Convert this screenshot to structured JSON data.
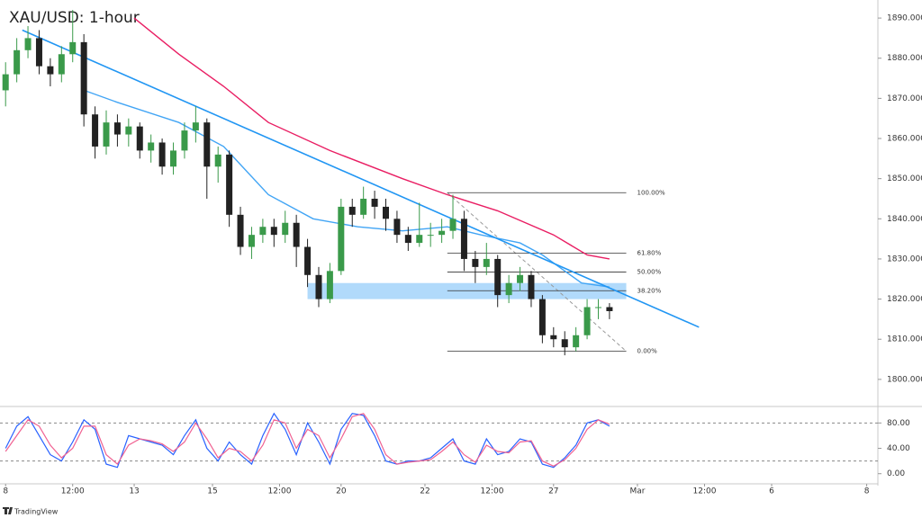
{
  "chart_data": [
    {
      "type": "candlestick",
      "title": "XAU/USD: 1-hour",
      "up_color": "#3a9a4a",
      "down_color": "#222222",
      "x": [
        0,
        2,
        4,
        6,
        8,
        10,
        12,
        14,
        16,
        18,
        20,
        22,
        24,
        26,
        28,
        30,
        32,
        34,
        36,
        38,
        40,
        42,
        44,
        46,
        48,
        50,
        52,
        54,
        56,
        58,
        60,
        62,
        64,
        66,
        68,
        70,
        72,
        74,
        76,
        78,
        80,
        82,
        84,
        86,
        88,
        90,
        92,
        94,
        96,
        98,
        100,
        102,
        104,
        106,
        108
      ],
      "ohlc": [
        [
          1872,
          1879,
          1868,
          1876
        ],
        [
          1876,
          1885,
          1874,
          1882
        ],
        [
          1882,
          1888,
          1880,
          1885
        ],
        [
          1885,
          1887,
          1876,
          1878
        ],
        [
          1878,
          1880,
          1873,
          1876
        ],
        [
          1876,
          1883,
          1874,
          1881
        ],
        [
          1881,
          1892,
          1879,
          1884
        ],
        [
          1884,
          1886,
          1863,
          1866
        ],
        [
          1866,
          1868,
          1855,
          1858
        ],
        [
          1858,
          1867,
          1856,
          1864
        ],
        [
          1864,
          1866,
          1858,
          1861
        ],
        [
          1861,
          1865,
          1858,
          1863
        ],
        [
          1863,
          1864,
          1855,
          1857
        ],
        [
          1857,
          1861,
          1854,
          1859
        ],
        [
          1859,
          1860,
          1851,
          1853
        ],
        [
          1853,
          1859,
          1851,
          1857
        ],
        [
          1857,
          1864,
          1855,
          1862
        ],
        [
          1862,
          1868,
          1859,
          1864
        ],
        [
          1864,
          1865,
          1845,
          1853
        ],
        [
          1853,
          1858,
          1849,
          1856
        ],
        [
          1856,
          1857,
          1838,
          1841
        ],
        [
          1841,
          1843,
          1831,
          1833
        ],
        [
          1833,
          1838,
          1830,
          1836
        ],
        [
          1836,
          1840,
          1834,
          1838
        ],
        [
          1838,
          1840,
          1833,
          1836
        ],
        [
          1836,
          1842,
          1834,
          1839
        ],
        [
          1839,
          1841,
          1828,
          1833
        ],
        [
          1833,
          1835,
          1823,
          1826
        ],
        [
          1826,
          1828,
          1818,
          1820
        ],
        [
          1820,
          1829,
          1819,
          1827
        ],
        [
          1827,
          1845,
          1826,
          1843
        ],
        [
          1843,
          1845,
          1838,
          1841
        ],
        [
          1841,
          1848,
          1840,
          1845
        ],
        [
          1845,
          1847,
          1840,
          1843
        ],
        [
          1843,
          1845,
          1837,
          1840
        ],
        [
          1840,
          1842,
          1834,
          1836
        ],
        [
          1836,
          1838,
          1832,
          1834
        ],
        [
          1834,
          1844,
          1833,
          1836
        ],
        [
          1836,
          1839,
          1833,
          1836
        ],
        [
          1836,
          1840,
          1834,
          1837
        ],
        [
          1837,
          1846,
          1835,
          1840
        ],
        [
          1840,
          1842,
          1827,
          1830
        ],
        [
          1830,
          1832,
          1824,
          1828
        ],
        [
          1828,
          1834,
          1826,
          1830
        ],
        [
          1830,
          1831,
          1818,
          1821
        ],
        [
          1821,
          1826,
          1819,
          1824
        ],
        [
          1824,
          1828,
          1822,
          1826
        ],
        [
          1826,
          1827,
          1818,
          1820
        ],
        [
          1820,
          1821,
          1809,
          1811
        ],
        [
          1811,
          1813,
          1808,
          1810
        ],
        [
          1810,
          1812,
          1806,
          1808
        ],
        [
          1808,
          1813,
          1807,
          1811
        ],
        [
          1811,
          1820,
          1810,
          1818
        ],
        [
          1818,
          1820,
          1815,
          1818
        ],
        [
          1818,
          1819,
          1815,
          1817
        ]
      ],
      "series": [
        {
          "color": "#e91e63",
          "x": [
            23,
            31,
            39,
            47,
            58,
            71,
            79,
            88,
            98,
            104,
            108
          ],
          "values": [
            1890,
            1881,
            1873,
            1864,
            1857,
            1850,
            1846,
            1842,
            1836,
            1831,
            1830
          ]
        },
        {
          "color": "#42a5f5",
          "x": [
            14,
            20,
            31,
            39,
            47,
            55,
            63,
            71,
            79,
            85,
            92,
            96,
            103,
            108
          ],
          "values": [
            1872,
            1869,
            1864,
            1858,
            1846,
            1840,
            1838,
            1837,
            1838,
            1836,
            1834,
            1831,
            1824,
            1823
          ]
        },
        {
          "color": "#2196f3",
          "x": [
            3,
            124
          ],
          "values": [
            1887,
            1813
          ]
        }
      ],
      "zone": {
        "color": "#90caf9",
        "x": [
          54,
          111
        ],
        "y": [
          1820,
          1824
        ]
      },
      "fib": {
        "high": 1846.5,
        "low": 1807,
        "x": [
          79,
          111
        ],
        "levels": [
          100,
          61.8,
          50,
          38.2,
          0
        ],
        "value_labels": [
          "100.00%",
          "61.80%",
          "50.00%",
          "38.20%",
          "0.00%"
        ]
      },
      "xlim": [
        -1,
        156
      ],
      "ylim": [
        1793.25,
        1894.5
      ],
      "yticks": [
        {
          "value": 1800,
          "label": "1800.000"
        },
        {
          "value": 1810,
          "label": "1810.000"
        },
        {
          "value": 1820,
          "label": "1820.000"
        },
        {
          "value": 1830,
          "label": "1830.000"
        },
        {
          "value": 1840,
          "label": "1840.000"
        },
        {
          "value": 1850,
          "label": "1850.000"
        },
        {
          "value": 1860,
          "label": "1860.000"
        },
        {
          "value": 1870,
          "label": "1870.000"
        },
        {
          "value": 1880,
          "label": "1880.000"
        },
        {
          "value": 1890,
          "label": "1890.000"
        }
      ]
    },
    {
      "type": "line",
      "x": [
        0,
        2,
        4,
        6,
        8,
        10,
        12,
        14,
        16,
        18,
        20,
        22,
        24,
        26,
        28,
        30,
        32,
        34,
        36,
        38,
        40,
        42,
        44,
        46,
        48,
        50,
        52,
        54,
        56,
        58,
        60,
        62,
        64,
        66,
        68,
        70,
        72,
        74,
        76,
        78,
        80,
        82,
        84,
        86,
        88,
        90,
        92,
        94,
        96,
        98,
        100,
        102,
        104,
        106,
        108
      ],
      "series": [
        {
          "color": "#2962ff",
          "values": [
            40,
            75,
            90,
            60,
            30,
            20,
            50,
            85,
            70,
            15,
            10,
            60,
            55,
            50,
            45,
            30,
            60,
            85,
            40,
            20,
            50,
            30,
            15,
            60,
            95,
            70,
            30,
            80,
            50,
            15,
            70,
            95,
            92,
            60,
            20,
            15,
            20,
            20,
            25,
            40,
            55,
            20,
            15,
            55,
            30,
            35,
            55,
            50,
            15,
            10,
            25,
            45,
            80,
            85,
            75
          ]
        },
        {
          "color": "#f06292",
          "values": [
            35,
            60,
            85,
            75,
            45,
            25,
            40,
            75,
            75,
            30,
            15,
            45,
            55,
            52,
            47,
            35,
            50,
            80,
            55,
            25,
            40,
            35,
            20,
            45,
            85,
            80,
            40,
            70,
            60,
            25,
            55,
            90,
            95,
            70,
            30,
            15,
            18,
            20,
            22,
            35,
            50,
            30,
            18,
            45,
            35,
            33,
            50,
            52,
            20,
            12,
            22,
            40,
            70,
            85,
            78
          ]
        }
      ],
      "levels": [
        20,
        80
      ],
      "xlim": [
        -1,
        156
      ],
      "ylim": [
        -16,
        106
      ],
      "yticks": [
        {
          "value": 0,
          "label": "0.00"
        },
        {
          "value": 40,
          "label": "40.00"
        },
        {
          "value": 80,
          "label": "80.00"
        }
      ],
      "xticks": [
        {
          "value": 0,
          "label": "8"
        },
        {
          "value": 12,
          "label": "12:00"
        },
        {
          "value": 23,
          "label": "13"
        },
        {
          "value": 37,
          "label": "15"
        },
        {
          "value": 49,
          "label": "12:00"
        },
        {
          "value": 60,
          "label": "20"
        },
        {
          "value": 75,
          "label": "22"
        },
        {
          "value": 87,
          "label": "12:00"
        },
        {
          "value": 98,
          "label": "27"
        },
        {
          "value": 113,
          "label": "Mar"
        },
        {
          "value": 125,
          "label": "12:00"
        },
        {
          "value": 137,
          "label": "6"
        },
        {
          "value": 154,
          "label": "8"
        }
      ]
    }
  ],
  "footer": "TradingView"
}
